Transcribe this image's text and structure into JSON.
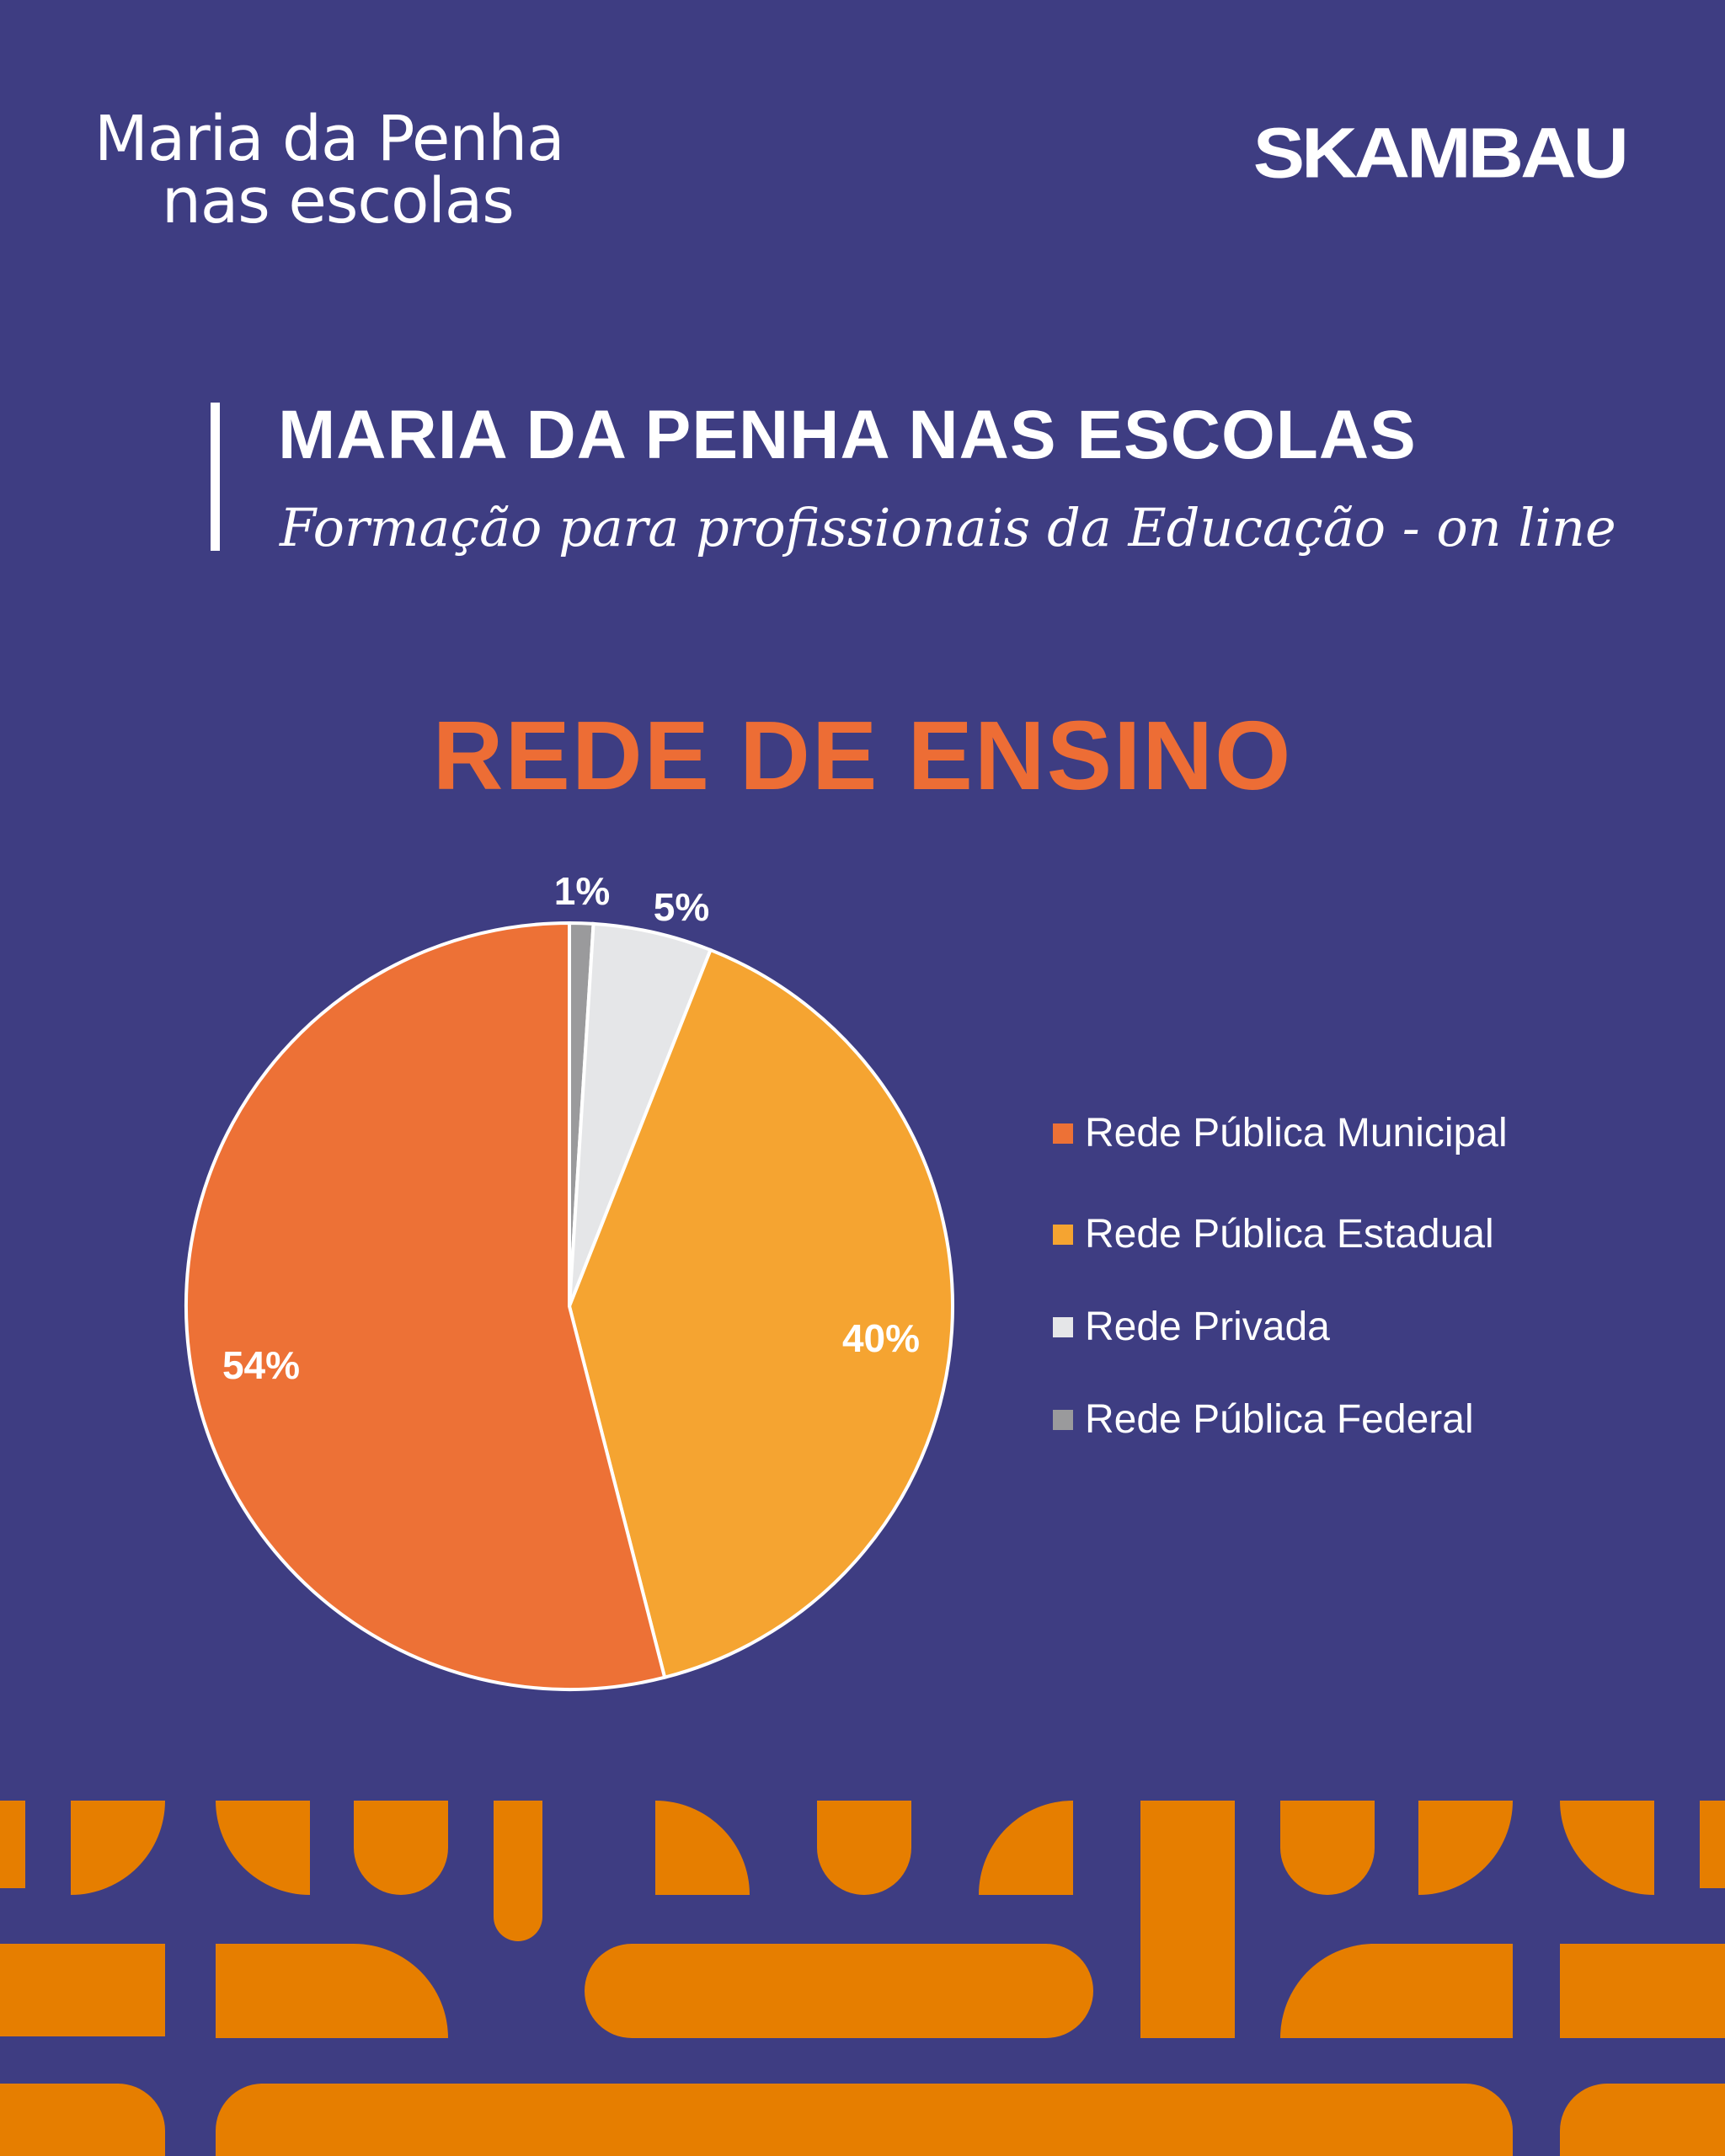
{
  "brand": {
    "left_line1": "Maria da Penha",
    "left_line2": "nas escolas",
    "right": "SKAMBAU"
  },
  "header": {
    "title": "MARIA DA PENHA NAS ESCOLAS",
    "subtitle": "Formação para profissionais da Educação - on line"
  },
  "colors": {
    "background": "#3e3d82",
    "accent": "#ed6d35",
    "pattern": "#e67e00"
  },
  "chart_data": {
    "type": "pie",
    "title": "REDE DE ENSINO",
    "legend_position": "right",
    "slices": [
      {
        "label": "Rede Pública Municipal",
        "value": 54,
        "display": "54%",
        "color": "#ed7136"
      },
      {
        "label": "Rede Pública Estadual",
        "value": 40,
        "display": "40%",
        "color": "#f5a431"
      },
      {
        "label": "Rede Privada",
        "value": 5,
        "display": "5%",
        "color": "#e5e6e8"
      },
      {
        "label": "Rede Pública Federal",
        "value": 1,
        "display": "1%",
        "color": "#9a9a9c"
      }
    ]
  }
}
